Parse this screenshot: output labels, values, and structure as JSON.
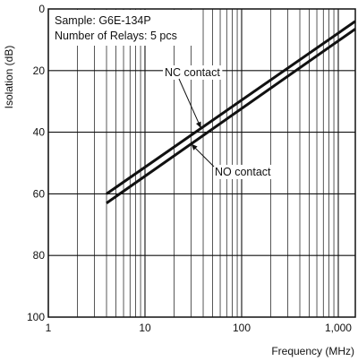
{
  "chart_data": {
    "type": "line",
    "xlabel": "Frequency (MHz)",
    "ylabel": "Isolation (dB)",
    "x_scale": "log",
    "xlim": [
      1,
      1500
    ],
    "ylim": [
      0,
      100
    ],
    "y_inverted": true,
    "grid": true,
    "x_ticks": [
      1,
      10,
      100,
      1000
    ],
    "x_tick_labels": [
      "1",
      "10",
      "100",
      "1,000"
    ],
    "y_ticks": [
      0,
      20,
      40,
      60,
      80,
      100
    ],
    "y_tick_labels": [
      "0",
      "20",
      "40",
      "60",
      "80",
      "100"
    ],
    "annotations": [
      "Sample: G6E-134P",
      "Number of Relays: 5 pcs"
    ],
    "series": [
      {
        "name": "NC contact",
        "x": [
          4,
          1500
        ],
        "y": [
          60,
          4
        ]
      },
      {
        "name": "NO contact",
        "x": [
          4,
          1500
        ],
        "y": [
          63,
          6.5
        ]
      }
    ],
    "line_color": "#111111"
  }
}
